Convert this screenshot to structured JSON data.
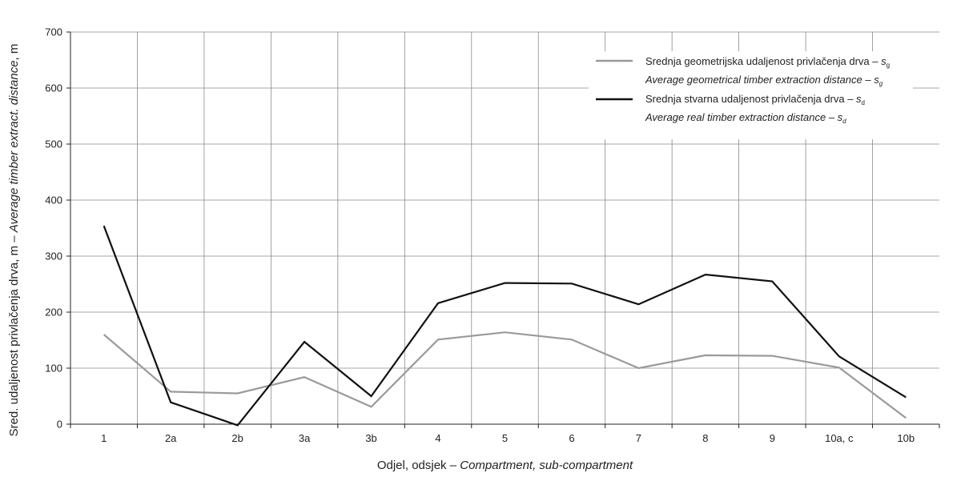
{
  "chart_data": {
    "type": "line",
    "categories": [
      "1",
      "2a",
      "2b",
      "3a",
      "3b",
      "4",
      "5",
      "6",
      "7",
      "8",
      "9",
      "10a, c",
      "10b"
    ],
    "series": [
      {
        "name": "Srednja geometrijska udaljenost privlačenja drva – sg / Average geometrical timber extraction distance – sg",
        "color": "#9a9a9a",
        "values": [
          160,
          58,
          55,
          84,
          31,
          151,
          164,
          151,
          100,
          123,
          122,
          101,
          11
        ]
      },
      {
        "name": "Srednja stvarna udaljenost privlačenja drva – sd / Average real timber extraction distance – sd",
        "color": "#111111",
        "values": [
          354,
          39,
          -2,
          147,
          50,
          216,
          252,
          251,
          214,
          267,
          255,
          121,
          48
        ]
      }
    ],
    "ylim": [
      0,
      700
    ],
    "yticks": [
      0,
      100,
      200,
      300,
      400,
      500,
      600,
      700
    ],
    "grid": true,
    "legend_position": "top-right",
    "xlabel": {
      "plain": "Odjel, odsjek – ",
      "italic": "Compartment, sub-compartment"
    },
    "ylabel": {
      "plain": "Sred. udaljenost privlačenja drva, m – ",
      "italic": "Average timber extract. distance"
    },
    "ylabel_suffix": ", m",
    "legend": [
      {
        "series": 0,
        "line1": "Srednja geometrijska udaljenost privlačenja drva – ",
        "line1_var": "s",
        "line1_sub": "g",
        "line2": "Average geometrical timber extraction distance – ",
        "line2_var": "s",
        "line2_sub": "g"
      },
      {
        "series": 1,
        "line1": "Srednja stvarna udaljenost privlačenja drva – ",
        "line1_var": "s",
        "line1_sub": "d",
        "line2": "Average real timber extraction distance – ",
        "line2_var": "s",
        "line2_sub": "d"
      }
    ]
  }
}
